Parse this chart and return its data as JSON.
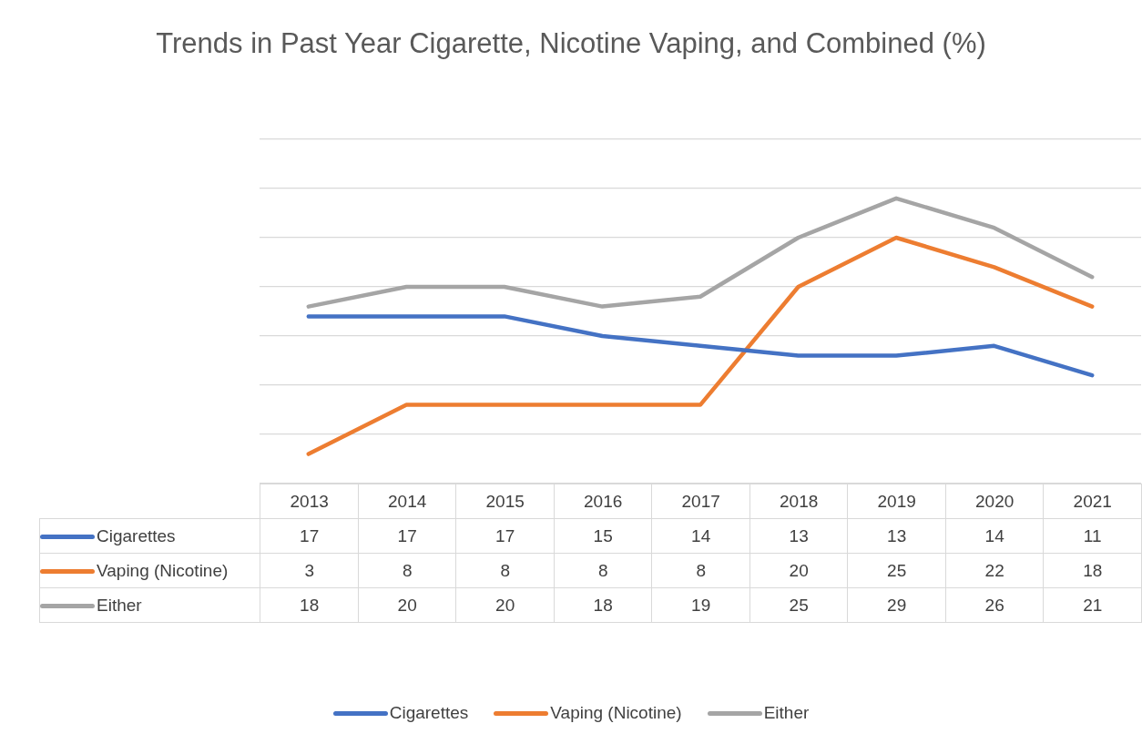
{
  "chart_data": {
    "type": "line",
    "title": "Trends in Past Year Cigarette, Nicotine Vaping, and Combined (%)",
    "categories": [
      "2013",
      "2014",
      "2015",
      "2016",
      "2017",
      "2018",
      "2019",
      "2020",
      "2021"
    ],
    "series": [
      {
        "name": "Cigarettes",
        "color": "#4472c4",
        "values": [
          17,
          17,
          17,
          15,
          14,
          13,
          13,
          14,
          11
        ]
      },
      {
        "name": "Vaping (Nicotine)",
        "color": "#ed7d31",
        "values": [
          3,
          8,
          8,
          8,
          8,
          20,
          25,
          22,
          18
        ]
      },
      {
        "name": "Either",
        "color": "#a5a5a5",
        "values": [
          18,
          20,
          20,
          18,
          19,
          25,
          29,
          26,
          21
        ]
      }
    ],
    "ylim": [
      0,
      35
    ],
    "yticks": [
      {
        "value": 0,
        "label": null
      },
      {
        "value": 5,
        "label": null
      },
      {
        "value": 10,
        "label": null
      },
      {
        "value": 15,
        "label": null
      },
      {
        "value": 20,
        "label": null
      },
      {
        "value": 25,
        "label": null
      },
      {
        "value": 30,
        "label": null
      },
      {
        "value": 35,
        "label": null
      }
    ],
    "tick_labels": "x",
    "grid": "y",
    "data_labels": true,
    "legend": "bottom",
    "marker": "none",
    "line_style": "solid"
  }
}
